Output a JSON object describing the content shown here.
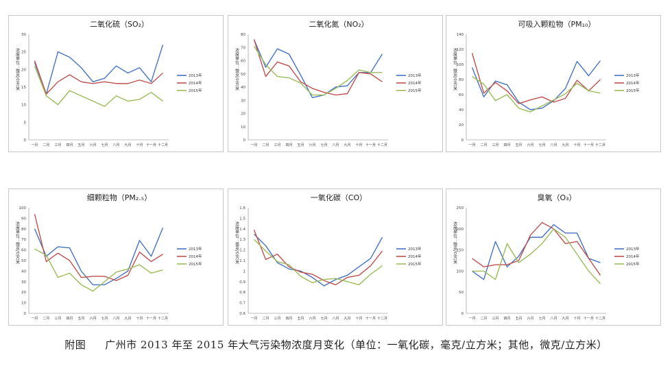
{
  "caption": {
    "lead": "附图",
    "text": "广州市 2013 年至 2015 年大气污染物浓度月变化（单位：一氧化碳，毫克/立方米；其他，微克/立方米）"
  },
  "colors": {
    "s2013": "#4472c4",
    "s2014": "#c0504d",
    "s2015": "#9bbb59",
    "frame": "#c8c8c8",
    "axis": "#a6a6a6"
  },
  "months": [
    "一月",
    "二月",
    "三月",
    "四月",
    "五月",
    "六月",
    "七月",
    "八月",
    "九月",
    "十月",
    "十一月",
    "十二月"
  ],
  "chart_data": [
    {
      "type": "line",
      "title": "二氧化硫（SO₂）",
      "ylabel": "浓度单位：微克/立方米",
      "ylim": [
        0,
        30
      ],
      "yticks": [
        0,
        5,
        10,
        15,
        20,
        25,
        30
      ],
      "legend_position": "right",
      "series": [
        {
          "name": "2013年",
          "values": [
            22,
            13,
            25,
            23.5,
            20.5,
            16.5,
            17.5,
            21,
            19,
            20.5,
            16.5,
            27
          ]
        },
        {
          "name": "2014年",
          "values": [
            22.5,
            13,
            16.5,
            18.5,
            16.5,
            16,
            16.5,
            16,
            16,
            17,
            16,
            19
          ]
        },
        {
          "name": "2015年",
          "values": [
            21,
            12.5,
            10,
            14,
            12.5,
            11,
            9.5,
            12.5,
            11,
            11.5,
            13.5,
            11
          ]
        }
      ]
    },
    {
      "type": "line",
      "title": "二氧化氮（NO₂）",
      "ylabel": "浓度单位：微克/立方米",
      "ylim": [
        0,
        80
      ],
      "yticks": [
        0,
        10,
        20,
        30,
        40,
        50,
        60,
        70,
        80
      ],
      "legend_position": "right",
      "series": [
        {
          "name": "2013年",
          "values": [
            76,
            55,
            69,
            65,
            49,
            32,
            34,
            40,
            41,
            51,
            51,
            65
          ]
        },
        {
          "name": "2014年",
          "values": [
            76,
            48,
            59,
            56,
            44,
            39,
            36,
            34,
            35,
            51,
            50,
            44
          ]
        },
        {
          "name": "2015年",
          "values": [
            71,
            57,
            48,
            47,
            43,
            34,
            34,
            39,
            45,
            53,
            51,
            51
          ]
        }
      ]
    },
    {
      "type": "line",
      "title": "可吸入颗粒物（PM₁₀）",
      "ylabel": "浓度单位：微克/立方米",
      "ylim": [
        0,
        140
      ],
      "yticks": [
        0,
        20,
        40,
        60,
        80,
        100,
        120,
        140
      ],
      "legend_position": "right",
      "series": [
        {
          "name": "2013年",
          "values": [
            96,
            57,
            78,
            73,
            50,
            40,
            42,
            52,
            68,
            104,
            85,
            105
          ]
        },
        {
          "name": "2014年",
          "values": [
            115,
            62,
            76,
            65,
            48,
            53,
            57,
            50,
            55,
            79,
            65,
            80
          ]
        },
        {
          "name": "2015年",
          "values": [
            84,
            74,
            52,
            60,
            42,
            37,
            45,
            53,
            61,
            75,
            65,
            62
          ]
        }
      ]
    },
    {
      "type": "line",
      "title": "细颗粒物（PM₂.₅）",
      "ylabel": "浓度单位：微克/立方米",
      "ylim": [
        0,
        100
      ],
      "yticks": [
        0,
        10,
        20,
        30,
        40,
        50,
        60,
        70,
        80,
        90,
        100
      ],
      "legend_position": "right",
      "series": [
        {
          "name": "2013年",
          "values": [
            80,
            54,
            63,
            62,
            40,
            27,
            27,
            33,
            40,
            69,
            54,
            81
          ]
        },
        {
          "name": "2014年",
          "values": [
            94,
            49,
            57,
            50,
            34,
            35,
            35,
            31,
            36,
            58,
            49,
            56
          ]
        },
        {
          "name": "2015年",
          "values": [
            61,
            55,
            34,
            38,
            27,
            21,
            30,
            39,
            42,
            46,
            38,
            41
          ]
        }
      ]
    },
    {
      "type": "line",
      "title": "一氧化碳（CO）",
      "ylabel": "浓度单位：毫克/立方米",
      "ylim": [
        0.6,
        1.6
      ],
      "yticks": [
        0.6,
        0.7,
        0.8,
        0.9,
        1.0,
        1.1,
        1.2,
        1.3,
        1.4,
        1.5,
        1.6
      ],
      "legend_position": "right",
      "series": [
        {
          "name": "2013年",
          "values": [
            1.35,
            1.24,
            1.08,
            1.02,
            1.0,
            0.94,
            0.86,
            0.92,
            0.96,
            1.04,
            1.12,
            1.32
          ]
        },
        {
          "name": "2014年",
          "values": [
            1.39,
            1.11,
            1.16,
            1.04,
            0.99,
            0.97,
            0.91,
            0.87,
            0.94,
            0.96,
            1.05,
            1.19
          ]
        },
        {
          "name": "2015年",
          "values": [
            1.3,
            1.19,
            1.09,
            1.06,
            0.95,
            0.89,
            0.92,
            0.93,
            0.9,
            0.87,
            0.97,
            1.05
          ]
        }
      ]
    },
    {
      "type": "line",
      "title": "臭氧（O₃）",
      "ylabel": "浓度单位：微克/立方米",
      "ylim": [
        0,
        250
      ],
      "yticks": [
        0,
        50,
        100,
        150,
        200,
        250
      ],
      "legend_position": "right",
      "series": [
        {
          "name": "2013年",
          "values": [
            100,
            80,
            170,
            110,
            135,
            180,
            180,
            210,
            190,
            190,
            130,
            120
          ]
        },
        {
          "name": "2014年",
          "values": [
            130,
            110,
            115,
            115,
            125,
            185,
            215,
            200,
            165,
            170,
            130,
            90
          ]
        },
        {
          "name": "2015年",
          "values": [
            100,
            100,
            80,
            165,
            120,
            140,
            165,
            200,
            180,
            140,
            100,
            70
          ]
        }
      ]
    }
  ]
}
